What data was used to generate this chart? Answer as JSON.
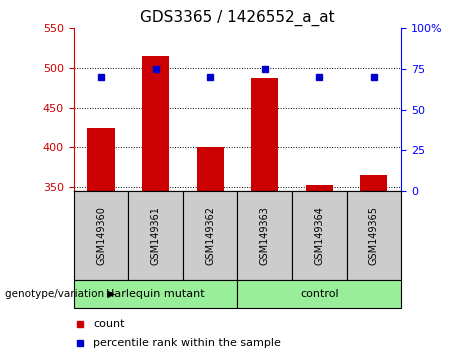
{
  "title": "GDS3365 / 1426552_a_at",
  "samples": [
    "GSM149360",
    "GSM149361",
    "GSM149362",
    "GSM149363",
    "GSM149364",
    "GSM149365"
  ],
  "counts": [
    425,
    515,
    400,
    488,
    353,
    365
  ],
  "percentiles": [
    70,
    75,
    70,
    75,
    70,
    70
  ],
  "ylim_left": [
    345,
    550
  ],
  "ylim_right": [
    0,
    100
  ],
  "yticks_left": [
    350,
    400,
    450,
    500,
    550
  ],
  "yticks_right": [
    0,
    25,
    50,
    75,
    100
  ],
  "ytick_labels_right": [
    "0",
    "25",
    "50",
    "75",
    "100%"
  ],
  "bar_color": "#cc0000",
  "scatter_color": "#0000cc",
  "group1_label": "Harlequin mutant",
  "group2_label": "control",
  "group_bg_color": "#99ee99",
  "sample_bg_color": "#cccccc",
  "legend_count_label": "count",
  "legend_pct_label": "percentile rank within the sample",
  "genotype_label": "genotype/variation",
  "bar_width": 0.5,
  "title_fontsize": 11,
  "tick_fontsize": 8,
  "annotation_fontsize": 8
}
